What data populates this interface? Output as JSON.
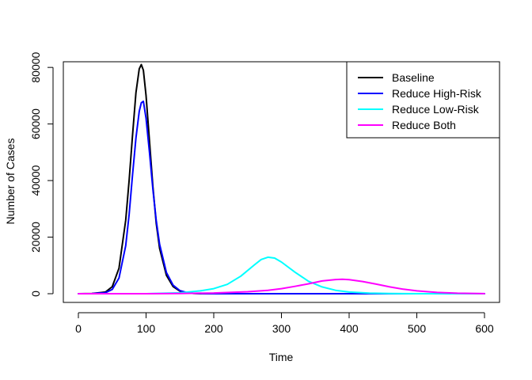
{
  "chart_data": {
    "type": "line",
    "title": "",
    "xlabel": "Time",
    "ylabel": "Number of Cases",
    "xlim": [
      0,
      600
    ],
    "ylim": [
      0,
      82000
    ],
    "xticks": [
      0,
      100,
      200,
      300,
      400,
      500,
      600
    ],
    "yticks": [
      0,
      20000,
      40000,
      60000,
      80000
    ],
    "xtick_labels": [
      "0",
      "100",
      "200",
      "300",
      "400",
      "500",
      "600"
    ],
    "ytick_labels": [
      "0",
      "20000",
      "40000",
      "60000",
      "80000"
    ],
    "grid": false,
    "legend_position": "top-right",
    "series": [
      {
        "name": "Baseline",
        "color": "#000000",
        "x": [
          0,
          20,
          40,
          50,
          60,
          70,
          75,
          80,
          85,
          90,
          93,
          96,
          100,
          105,
          110,
          115,
          120,
          130,
          140,
          150,
          160,
          170,
          180,
          200,
          250,
          300,
          400,
          500,
          600
        ],
        "y": [
          0,
          50,
          600,
          2500,
          9000,
          26000,
          40000,
          56000,
          71000,
          79500,
          81000,
          79000,
          70000,
          54000,
          38000,
          25000,
          16000,
          6500,
          2500,
          900,
          350,
          120,
          40,
          0,
          0,
          0,
          0,
          0,
          0
        ]
      },
      {
        "name": "Reduce High-Risk",
        "color": "#0000ff",
        "x": [
          0,
          20,
          40,
          50,
          60,
          70,
          75,
          80,
          85,
          90,
          93,
          96,
          100,
          105,
          110,
          115,
          120,
          130,
          140,
          150,
          160,
          170,
          180,
          200,
          250,
          300,
          400,
          500,
          600
        ],
        "y": [
          0,
          30,
          350,
          1500,
          5500,
          17000,
          28000,
          42000,
          55000,
          64500,
          67500,
          68000,
          62000,
          50000,
          37000,
          26000,
          17500,
          7500,
          3000,
          1100,
          420,
          150,
          50,
          0,
          0,
          0,
          0,
          0,
          0
        ]
      },
      {
        "name": "Reduce Low-Risk",
        "color": "#00ffff",
        "x": [
          0,
          100,
          150,
          180,
          200,
          220,
          240,
          260,
          270,
          280,
          290,
          300,
          320,
          340,
          360,
          380,
          400,
          430,
          460,
          500,
          550,
          600
        ],
        "y": [
          0,
          0,
          300,
          1000,
          1800,
          3300,
          6200,
          10200,
          12100,
          12900,
          12600,
          11200,
          7600,
          4400,
          2400,
          1200,
          600,
          200,
          60,
          10,
          0,
          0
        ]
      },
      {
        "name": "Reduce Both",
        "color": "#ff00ff",
        "x": [
          0,
          100,
          150,
          200,
          250,
          280,
          300,
          320,
          340,
          360,
          380,
          390,
          400,
          420,
          440,
          460,
          480,
          500,
          530,
          560,
          600
        ],
        "y": [
          0,
          0,
          80,
          250,
          700,
          1200,
          1800,
          2600,
          3500,
          4500,
          5000,
          5100,
          4950,
          4300,
          3400,
          2400,
          1600,
          1000,
          450,
          180,
          40
        ]
      }
    ]
  }
}
